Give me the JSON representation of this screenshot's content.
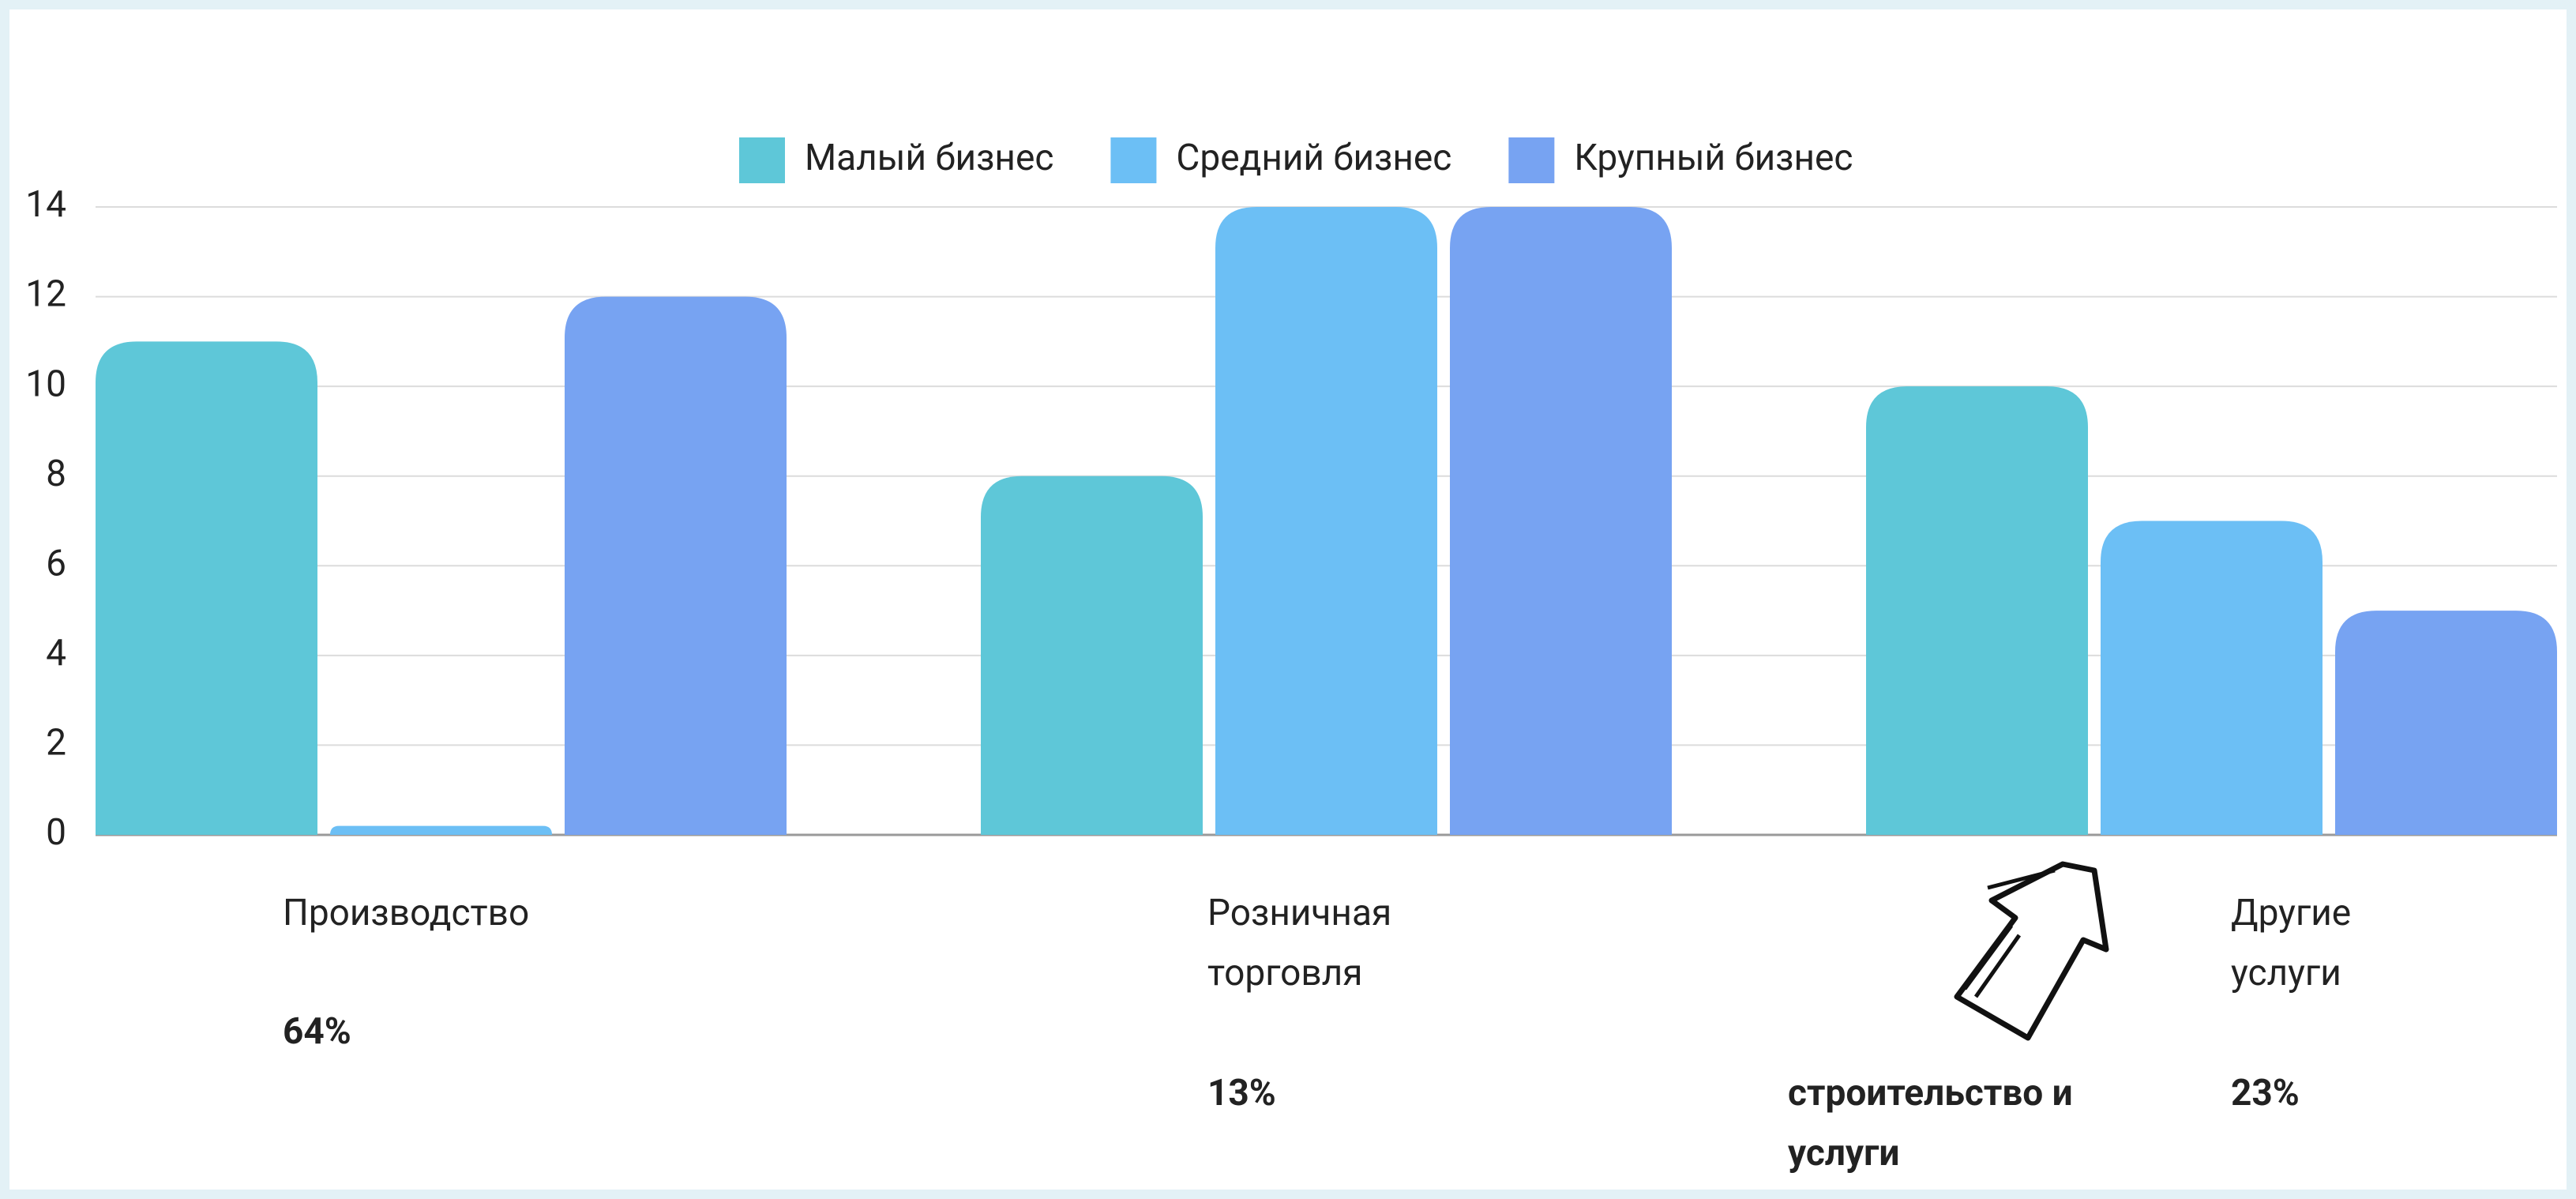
{
  "chart_data": {
    "type": "bar",
    "categories": [
      "Производство",
      "Розничная торговля",
      "Другие услуги"
    ],
    "series": [
      {
        "name": "Малый бизнес",
        "color": "#5ec7d8",
        "values": [
          11,
          8,
          10
        ]
      },
      {
        "name": "Средний бизнес",
        "color": "#6cbff5",
        "values": [
          0.2,
          14,
          7
        ]
      },
      {
        "name": "Крупный бизнес",
        "color": "#77a3f2",
        "values": [
          12,
          14,
          5
        ]
      }
    ],
    "ylim": [
      0,
      14
    ],
    "yticks": [
      0,
      2,
      4,
      6,
      8,
      10,
      12,
      14
    ],
    "grid": true,
    "legend": "top",
    "annotations": [
      "64%",
      "13%",
      "23%",
      "строительство и услуги"
    ]
  }
}
